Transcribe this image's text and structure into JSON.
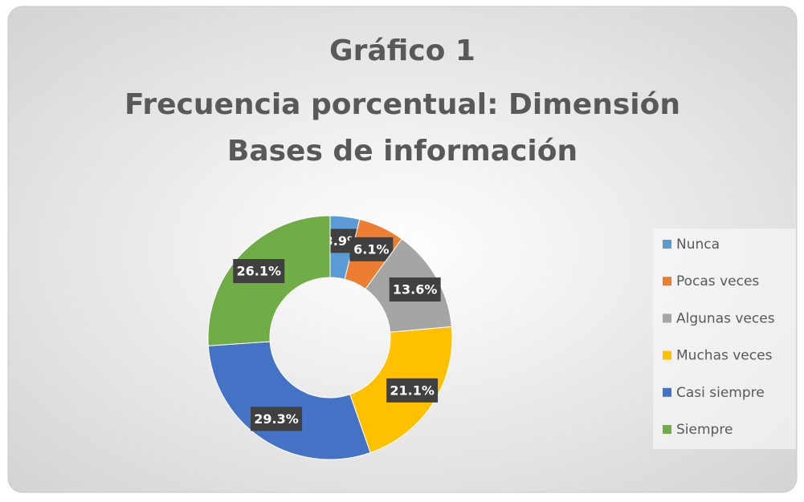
{
  "chart_data": {
    "type": "donut",
    "title": [
      "Gráfico 1",
      "Frecuencia porcentual: Dimensión",
      "Bases de información"
    ],
    "categories": [
      "Nunca",
      "Pocas veces",
      "Algunas veces",
      "Muchas veces",
      "Casi siempre",
      "Siempre"
    ],
    "values": [
      3.9,
      6.1,
      13.6,
      21.1,
      29.3,
      26.1
    ],
    "value_labels": [
      "3.9%",
      "6.1%",
      "13.6%",
      "21.1%",
      "29.3%",
      "26.1%"
    ],
    "colors": [
      "#5b9bd5",
      "#ed7d31",
      "#a5a5a5",
      "#ffc000",
      "#4472c4",
      "#70ad47"
    ],
    "legend": "right"
  }
}
